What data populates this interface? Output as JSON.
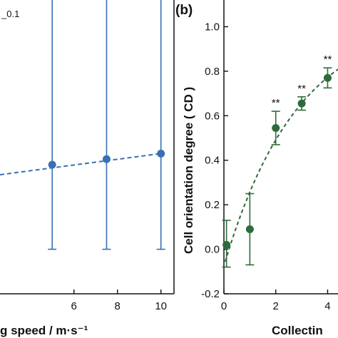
{
  "chart_data": [
    {
      "type": "scatter",
      "panel_label": "",
      "corner_text": "_0.1",
      "xlabel": "g speed / m·s⁻¹",
      "ylabel": "",
      "x_ticks": [
        "6",
        "8",
        "10"
      ],
      "xlim": [
        2.6,
        10.6
      ],
      "ylim": [
        -0.2,
        1.12
      ],
      "grid": false,
      "series": [
        {
          "color": "#3a6fb5",
          "points": [
            {
              "x": 5,
              "y": 0.38,
              "err_low": 0.38,
              "err_high": 0.77,
              "annotation": "**"
            },
            {
              "x": 7.5,
              "y": 0.405,
              "err_low": 0.405,
              "err_high": 0.85,
              "annotation": "**"
            },
            {
              "x": 10,
              "y": 0.43,
              "err_low": 0.43,
              "err_high": 0.85,
              "annotation": "**"
            }
          ]
        }
      ],
      "fit_line": {
        "style": "dashed",
        "color": "#3a6fb5",
        "from": [
          2.6,
          0.335
        ],
        "to": [
          10,
          0.43
        ]
      }
    },
    {
      "type": "scatter",
      "panel_label": "(b)",
      "xlabel": "Collectin",
      "ylabel": "Cell orientation degree ( CD )",
      "x_ticks": [
        "0",
        "2",
        "4"
      ],
      "y_ticks": [
        "-0.2",
        "0.0",
        "0.2",
        "0.4",
        "0.6",
        "0.8",
        "1.0"
      ],
      "xlim": [
        0,
        4.4
      ],
      "ylim": [
        -0.2,
        1.12
      ],
      "grid": false,
      "series": [
        {
          "color": "#2e6b3a",
          "points": [
            {
              "x": 0.1,
              "y": 0.02,
              "err_low": 0.1,
              "err_high": 0.11,
              "annotation": ""
            },
            {
              "x": 1,
              "y": 0.09,
              "err_low": 0.16,
              "err_high": 0.16,
              "annotation": ""
            },
            {
              "x": 2,
              "y": 0.545,
              "err_low": 0.075,
              "err_high": 0.075,
              "annotation": "**"
            },
            {
              "x": 3,
              "y": 0.655,
              "err_low": 0.03,
              "err_high": 0.03,
              "annotation": "**"
            },
            {
              "x": 4,
              "y": 0.77,
              "err_low": 0.045,
              "err_high": 0.045,
              "annotation": "**"
            }
          ]
        }
      ],
      "fit_line": {
        "style": "dashed",
        "color": "#2e6b3a",
        "curve": "saturating"
      }
    }
  ]
}
